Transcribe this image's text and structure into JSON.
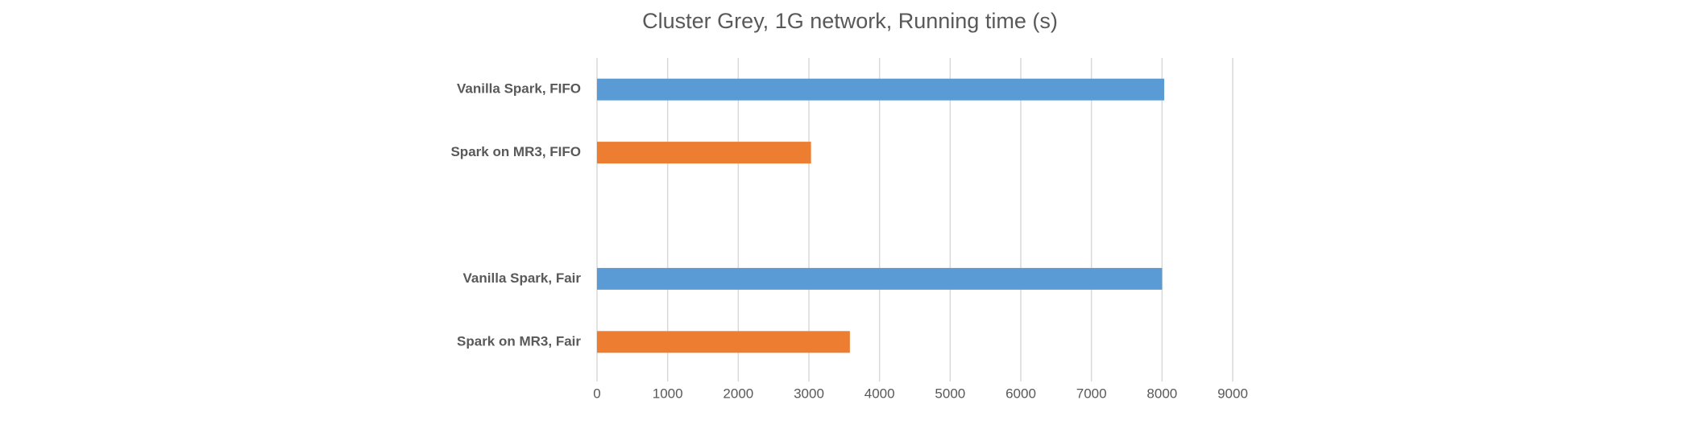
{
  "chart_data": {
    "type": "hbar",
    "title": "Cluster Grey, 1G network, Running time (s)",
    "categories": [
      "Vanilla Spark, FIFO",
      "Spark on MR3, FIFO",
      null,
      "Vanilla Spark, Fair",
      "Spark on MR3, Fair"
    ],
    "values": [
      8030,
      3030,
      null,
      8000,
      3580
    ],
    "colors": [
      "#5b9bd5",
      "#ed7d31",
      null,
      "#5b9bd5",
      "#ed7d31"
    ],
    "xlim": [
      0,
      9000
    ],
    "xticks": [
      0,
      1000,
      2000,
      3000,
      4000,
      5000,
      6000,
      7000,
      8000,
      9000
    ],
    "grid": true
  }
}
